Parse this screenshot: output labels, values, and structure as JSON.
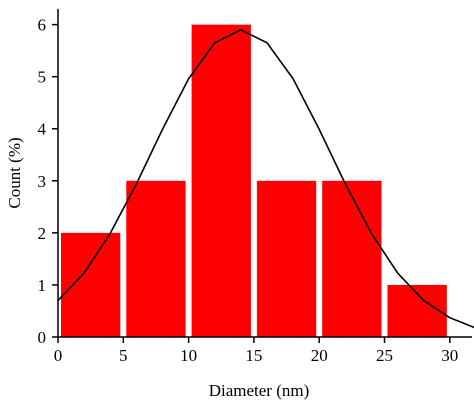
{
  "chart_data": {
    "type": "histogram",
    "x_label": "Diameter (nm)",
    "y_label": "Count (%)",
    "bins": [
      0,
      5,
      10,
      15,
      20,
      25,
      30
    ],
    "values": [
      2,
      3,
      6,
      3,
      3,
      1
    ],
    "color": "#ff0000",
    "fit": {
      "x": [
        0,
        2,
        4,
        6,
        8,
        10,
        12,
        14,
        16,
        18,
        20,
        22,
        24,
        26,
        28,
        30,
        32
      ],
      "y": [
        0.7,
        1.23,
        1.99,
        2.94,
        3.99,
        4.96,
        5.65,
        5.9,
        5.65,
        4.96,
        3.99,
        2.94,
        1.99,
        1.23,
        0.7,
        0.37,
        0.17
      ],
      "color": "#000000"
    },
    "xlim": [
      0,
      31.7
    ],
    "xticks": [
      0,
      5,
      10,
      15,
      20,
      25,
      30
    ],
    "ylim": [
      0,
      6.3
    ],
    "yticks": [
      0,
      1,
      2,
      3,
      4,
      5,
      6
    ]
  }
}
